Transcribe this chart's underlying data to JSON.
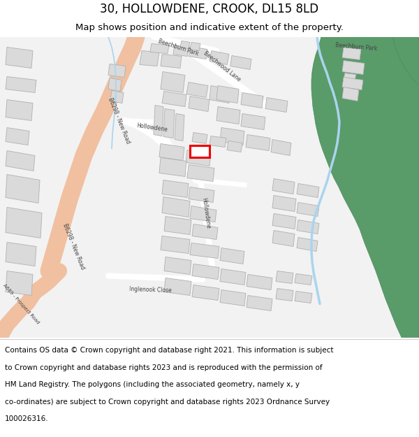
{
  "title": "30, HOLLOWDENE, CROOK, DL15 8LD",
  "subtitle": "Map shows position and indicative extent of the property.",
  "footer_lines": [
    "Contains OS data © Crown copyright and database right 2021. This information is subject",
    "to Crown copyright and database rights 2023 and is reproduced with the permission of",
    "HM Land Registry. The polygons (including the associated geometry, namely x, y",
    "co-ordinates) are subject to Crown copyright and database rights 2023 Ordnance Survey",
    "100026316."
  ],
  "map_bg": "#f2f2f2",
  "road_major_color": "#f0c0a0",
  "road_minor_color": "#ffffff",
  "building_color": "#dadada",
  "building_edge": "#b0b0b0",
  "river_fill": "#5a9b6a",
  "river_edge": "#4a8a5d",
  "water_line": "#aad4ee",
  "highlight_color": "#ee0000",
  "title_fontsize": 12,
  "subtitle_fontsize": 9.5,
  "footer_fontsize": 7.5,
  "label_fontsize": 5.5
}
